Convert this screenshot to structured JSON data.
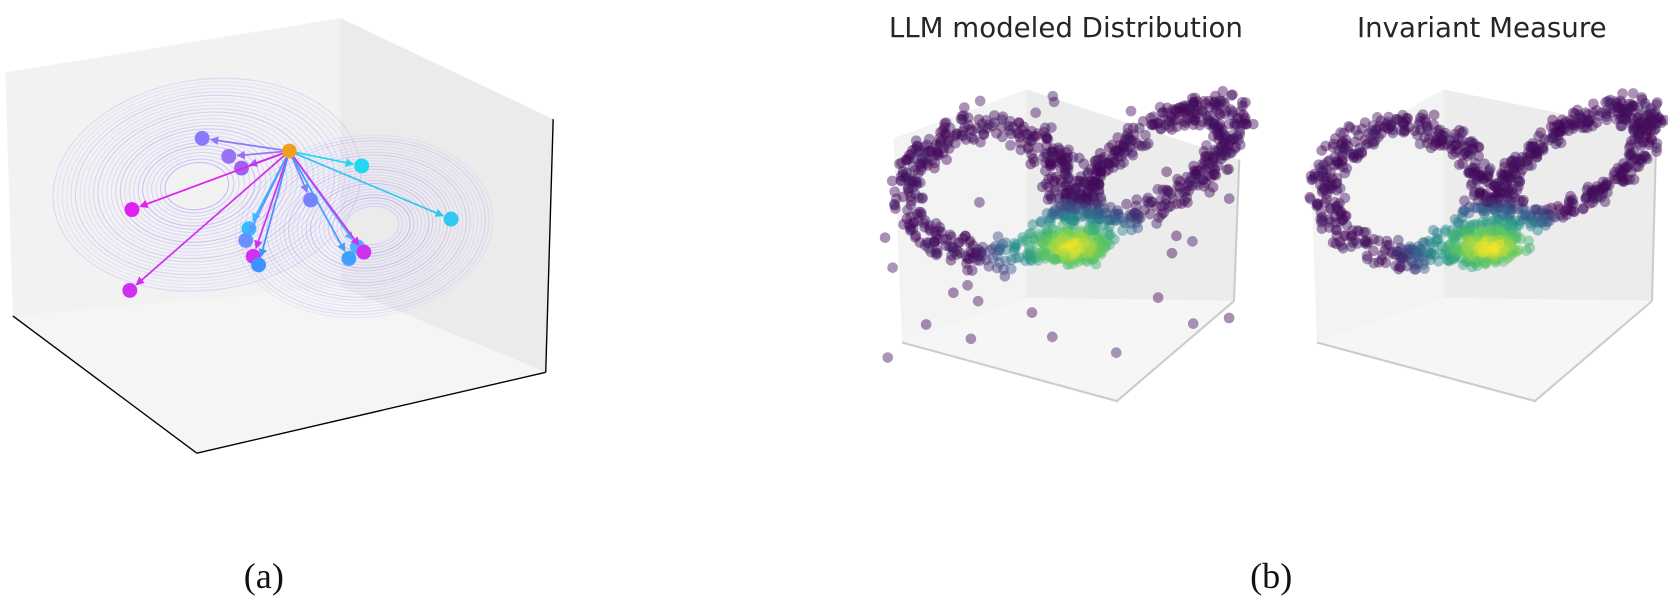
{
  "panels": [
    {
      "label": "(a)"
    },
    {
      "label": "(b)",
      "subplots": [
        {
          "title": "LLM modeled Distribution"
        },
        {
          "title": "Invariant Measure"
        }
      ]
    }
  ]
}
